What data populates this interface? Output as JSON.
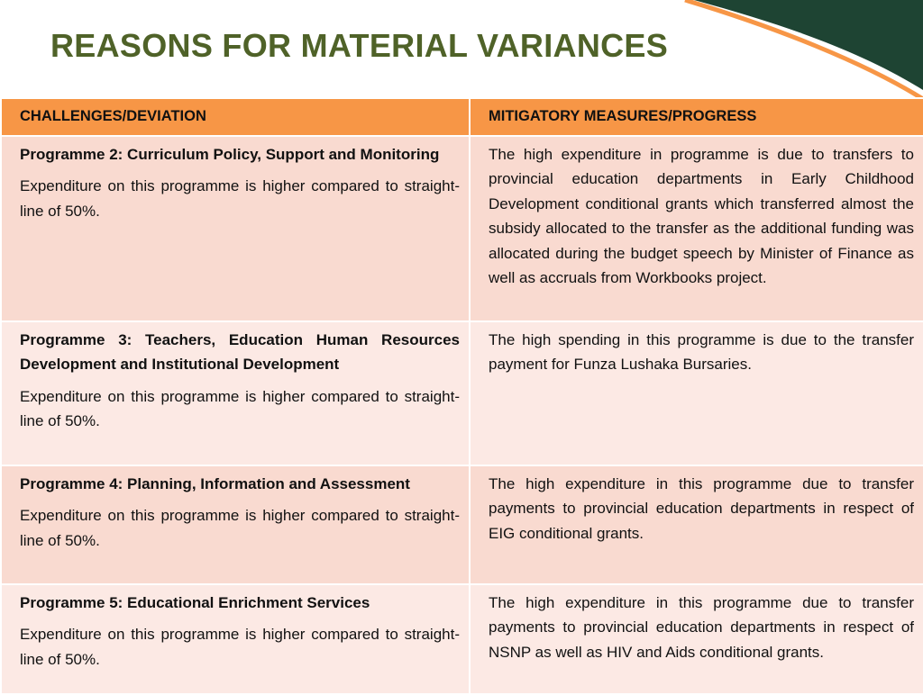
{
  "title": "REASONS FOR MATERIAL VARIANCES",
  "table": {
    "header": [
      "CHALLENGES/DEVIATION",
      "MITIGATORY MEASURES/PROGRESS"
    ],
    "rows": [
      {
        "programme": "Programme 2: Curriculum Policy, Support and Monitoring",
        "challenge": "Expenditure on this programme is higher compared to straight-line of 50%.",
        "mitigation": "The high expenditure in programme is due to transfers to provincial education departments in Early Childhood Development conditional grants which transferred almost the subsidy allocated to the transfer as the additional funding was allocated during the budget speech by Minister of Finance as well as accruals from Workbooks project."
      },
      {
        "programme": "Programme 3: Teachers, Education Human Resources Development and Institutional Development",
        "challenge": "Expenditure on this programme is higher compared to straight-line of 50%.",
        "mitigation": "The high spending in this programme is due to the transfer payment for Funza Lushaka Bursaries."
      },
      {
        "programme": "Programme 4: Planning, Information and Assessment",
        "challenge": "Expenditure on this programme is higher compared to straight-line of 50%.",
        "mitigation": "The high expenditure in this programme due to transfer payments to provincial education departments in respect of EIG conditional grants."
      },
      {
        "programme": "Programme 5: Educational Enrichment Services",
        "challenge": "Expenditure on this programme is higher compared to straight-line of 50%.",
        "mitigation": "The high expenditure in this programme due to transfer payments to provincial education departments in respect of NSNP as well as HIV and Aids conditional grants."
      }
    ]
  }
}
